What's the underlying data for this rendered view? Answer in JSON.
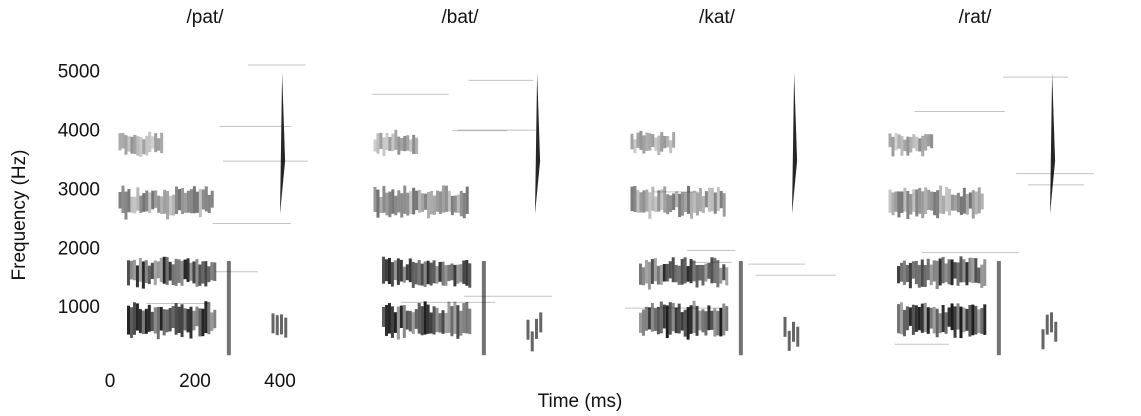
{
  "chart_data": [
    {
      "type": "spectrogram",
      "title": "/pat/",
      "y_label": "Frequency (Hz)",
      "x_label": "Time (ms)",
      "xlim": [
        0,
        520
      ],
      "ylim": [
        0,
        5300
      ],
      "xticks": [
        0,
        200,
        400
      ],
      "yticks": [
        1000,
        2000,
        3000,
        4000,
        5000
      ]
    },
    {
      "type": "spectrogram",
      "title": "/bat/"
    },
    {
      "type": "spectrogram",
      "title": "/kat/"
    },
    {
      "type": "spectrogram",
      "title": "/rat/"
    }
  ]
}
